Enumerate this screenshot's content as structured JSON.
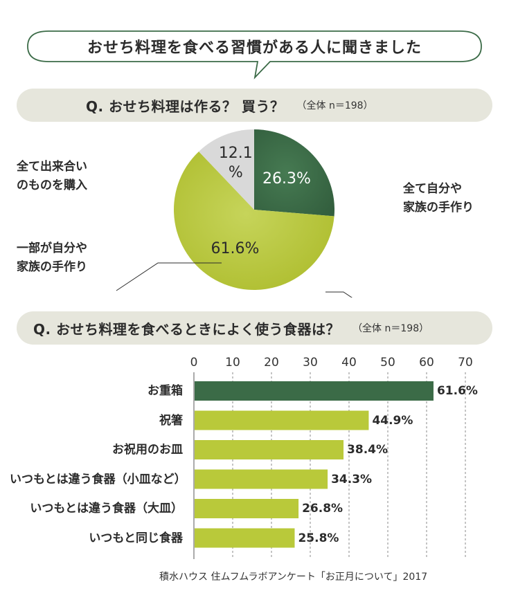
{
  "headline": "おせち料理を食べる習慣がある人に聞きました",
  "q1": {
    "question": "Q. おせち料理は作る？ 買う？",
    "note": "（全体 n＝198）"
  },
  "q2": {
    "question": "Q. おせち料理を食べるときによく使う食器は？",
    "note": "（全体 n＝198）"
  },
  "colors": {
    "dark_green": "#3b6b47",
    "light_green": "#b9c93a",
    "gray": "#d9d9d9",
    "qbar_bg": "#e6e6dc",
    "bubble_stroke": "#3b6b47"
  },
  "chart_data": [
    {
      "type": "pie",
      "slices": [
        {
          "label": "全て自分や家族の手作り",
          "label_lines": [
            "全て自分や",
            "家族の手作り"
          ],
          "value": 26.3,
          "display": "26.3%",
          "color": "#3b6b47"
        },
        {
          "label": "一部が自分や家族の手作り",
          "label_lines": [
            "一部が自分や",
            "家族の手作り"
          ],
          "value": 61.6,
          "display": "61.6%",
          "color": "#b9c93a"
        },
        {
          "label": "全て出来合いのものを購入",
          "label_lines": [
            "全て出来合い",
            "のものを購入"
          ],
          "value": 12.1,
          "display_lines": [
            "12.1",
            "%"
          ],
          "color": "#d9d9d9"
        }
      ]
    },
    {
      "type": "bar",
      "orientation": "horizontal",
      "categories": [
        "お重箱",
        "祝箸",
        "お祝用のお皿",
        "いつもとは違う食器（小皿など）",
        "いつもとは違う食器（大皿）",
        "いつもと同じ食器"
      ],
      "values": [
        61.6,
        44.9,
        38.4,
        34.3,
        26.8,
        25.8
      ],
      "value_labels": [
        "61.6%",
        "44.9%",
        "38.4%",
        "34.3%",
        "26.8%",
        "25.8%"
      ],
      "xlim": [
        0,
        70
      ],
      "ticks": [
        "0",
        "10",
        "20",
        "30",
        "40",
        "50",
        "60",
        "70"
      ],
      "grid": true,
      "bar_colors": [
        "#3b6b47",
        "#b9c93a",
        "#b9c93a",
        "#b9c93a",
        "#b9c93a",
        "#b9c93a"
      ]
    }
  ],
  "source": "積水ハウス 住ムフムラボアンケート「お正月について」2017"
}
